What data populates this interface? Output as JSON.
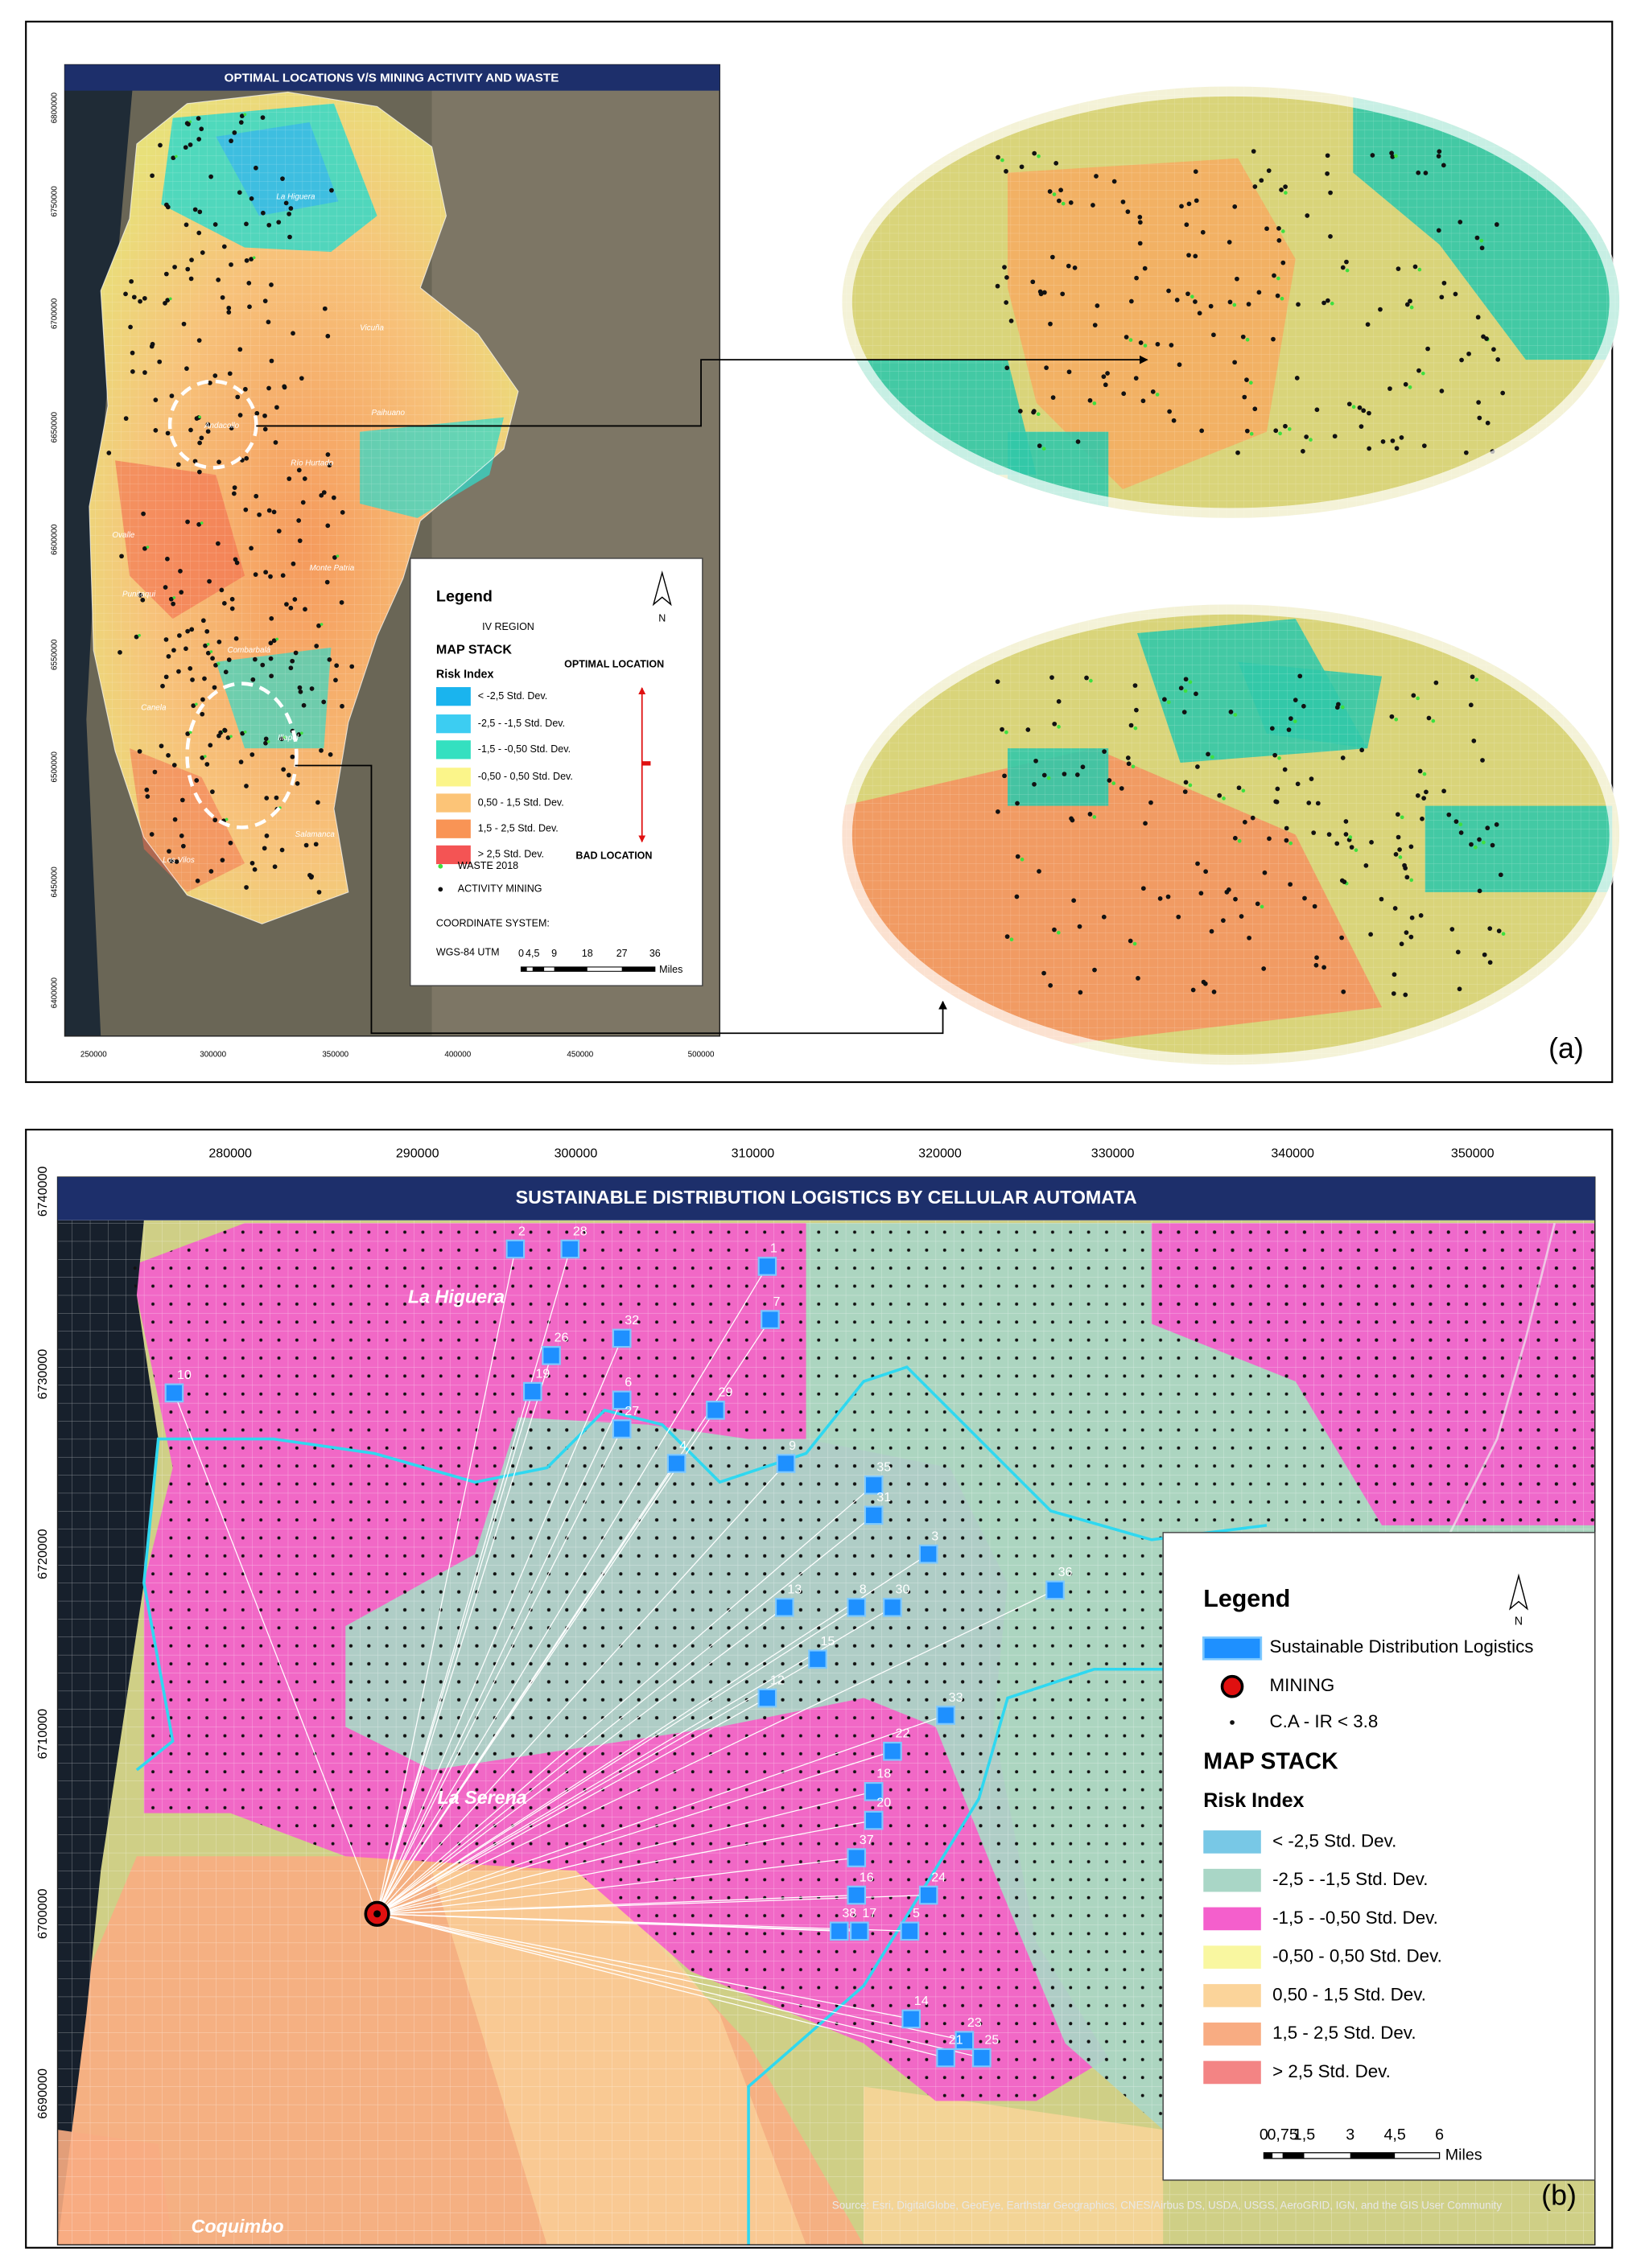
{
  "panel_a": {
    "title": "OPTIMAL LOCATIONS V/S MINING ACTIVITY AND WASTE",
    "y_ticks": [
      "6800000",
      "6750000",
      "6700000",
      "6650000",
      "6600000",
      "6550000",
      "6500000",
      "6450000",
      "6400000"
    ],
    "x_ticks": [
      "250000",
      "300000",
      "350000",
      "400000",
      "450000",
      "500000"
    ],
    "places": [
      "La Higuera",
      "Vicuña",
      "Paihuano",
      "Andacollo",
      "Río Hurtado",
      "Ovalle",
      "Monte Patria",
      "Punitaqui",
      "Combarbalá",
      "Canela",
      "Illapel",
      "Salamanca",
      "Los Vilos"
    ],
    "legend": {
      "title": "Legend",
      "region": "IV REGION",
      "map_stack": "MAP STACK",
      "risk_index": "Risk Index",
      "classes": [
        {
          "label": "< -2,5 Std. Dev.",
          "color": "#1ab4ee"
        },
        {
          "label": "-2,5 - -1,5 Std. Dev.",
          "color": "#3ccdf2"
        },
        {
          "label": "-1,5 - -0,50 Std. Dev.",
          "color": "#34e0c0"
        },
        {
          "label": "-0,50 - 0,50 Std. Dev.",
          "color": "#fbf58a"
        },
        {
          "label": "0,50 - 1,5 Std. Dev.",
          "color": "#fcc477"
        },
        {
          "label": "1,5 - 2,5 Std. Dev.",
          "color": "#f99455"
        },
        {
          "label": "> 2,5 Std. Dev.",
          "color": "#f45454"
        }
      ],
      "optimal": "OPTIMAL LOCATION",
      "bad": "BAD LOCATION",
      "waste": "WASTE 2018",
      "activity": "ACTIVITY MINING",
      "coord_title": "COORDINATE SYSTEM:",
      "coord": "WGS-84 UTM",
      "scale": [
        "0",
        "4,5",
        "9",
        "18",
        "27",
        "36"
      ],
      "scale_unit": "Miles",
      "north": "N"
    },
    "label": "(a)"
  },
  "panel_b": {
    "title": "SUSTAINABLE DISTRIBUTION LOGISTICS BY CELLULAR AUTOMATA",
    "x_ticks": [
      "280000",
      "290000",
      "300000",
      "310000",
      "320000",
      "330000",
      "340000",
      "350000"
    ],
    "y_ticks": [
      "6740000",
      "6730000",
      "6720000",
      "6710000",
      "6700000",
      "6690000"
    ],
    "places": [
      "La Higuera",
      "La Serena",
      "Coquimbo"
    ],
    "sites": [
      "2",
      "28",
      "1",
      "7",
      "32",
      "26",
      "19",
      "10",
      "6",
      "27",
      "29",
      "4",
      "9",
      "35",
      "31",
      "3",
      "36",
      "13",
      "8",
      "30",
      "15",
      "12",
      "33",
      "22",
      "18",
      "20",
      "37",
      "16",
      "24",
      "38",
      "17",
      "5",
      "14",
      "23",
      "21",
      "25"
    ],
    "source": "Source: Esri, DigitalGlobe, GeoEye, Earthstar Geographics, CNES/Airbus DS, USDA, USGS, AeroGRID, IGN, and the GIS User Community",
    "legend": {
      "title": "Legend",
      "sites": "Sustainable Distribution Logistics",
      "mining": "MINING",
      "ca": "C.A - IR < 3.8",
      "map_stack": "MAP STACK",
      "risk_index": "Risk Index",
      "classes": [
        {
          "label": "< -2,5 Std. Dev.",
          "color": "#78c8e6"
        },
        {
          "label": "-2,5 - -1,5 Std. Dev.",
          "color": "#a9d6c6"
        },
        {
          "label": "-1,5 - -0,50 Std. Dev.",
          "color": "#f45fcc"
        },
        {
          "label": "-0,50 - 0,50 Std. Dev.",
          "color": "#f9f7a0"
        },
        {
          "label": "0,50 - 1,5 Std. Dev.",
          "color": "#fbd49a"
        },
        {
          "label": "1,5 - 2,5 Std. Dev.",
          "color": "#f8ac82"
        },
        {
          "label": "> 2,5 Std. Dev.",
          "color": "#f38484"
        }
      ],
      "scale": [
        "0",
        "0,75",
        "1,5",
        "3",
        "4,5",
        "6"
      ],
      "scale_unit": "Miles",
      "north": "N"
    },
    "label": "(b)"
  }
}
